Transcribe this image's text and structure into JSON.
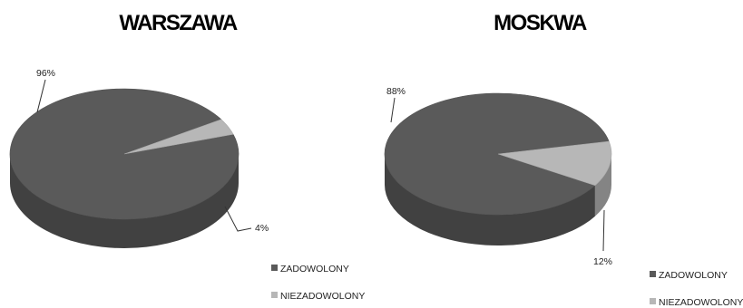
{
  "chart_data": [
    {
      "type": "pie",
      "title": "WARSZAWA",
      "categories": [
        "ZADOWOLONY",
        "NIEZADOWOLONY"
      ],
      "values": [
        96,
        4
      ],
      "labels": [
        "96%",
        "4%"
      ],
      "colors": [
        "#5a5a5a",
        "#b7b7b7"
      ],
      "style": "3d",
      "legend": "bottom-right"
    },
    {
      "type": "pie",
      "title": "MOSKWA",
      "categories": [
        "ZADOWOLONY",
        "NIEZADOWOLONY"
      ],
      "values": [
        88,
        12
      ],
      "labels": [
        "88%",
        "12%"
      ],
      "colors": [
        "#5a5a5a",
        "#b7b7b7"
      ],
      "style": "3d",
      "legend": "bottom-right"
    }
  ]
}
